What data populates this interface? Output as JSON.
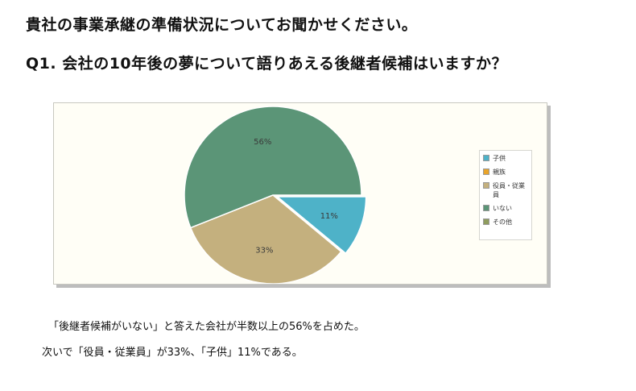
{
  "heading": {
    "line1": "貴社の事業承継の準備状況についてお聞かせください。",
    "line2": "Q1. 会社の10年後の夢について語りあえる後継者候補はいますか？"
  },
  "chart_data": {
    "type": "pie",
    "title": "",
    "slices": [
      {
        "name": "子供",
        "value": 11,
        "label": "11%",
        "color": "#4eb2c8"
      },
      {
        "name": "親族",
        "value": 0,
        "label": "",
        "color": "#e9a42a"
      },
      {
        "name": "役員・従業員",
        "value": 33,
        "label": "33%",
        "color": "#c4b07e"
      },
      {
        "name": "いない",
        "value": 56,
        "label": "56%",
        "color": "#5b9577"
      },
      {
        "name": "その他",
        "value": 0,
        "label": "",
        "color": "#8f9c5e"
      }
    ],
    "legend_position": "right"
  },
  "summary": {
    "line1": "「後継者候補がいない」と答えた会社が半数以上の56%を占めた。",
    "line2": "次いで「役員・従業員」が33%、「子供」11%である。"
  }
}
